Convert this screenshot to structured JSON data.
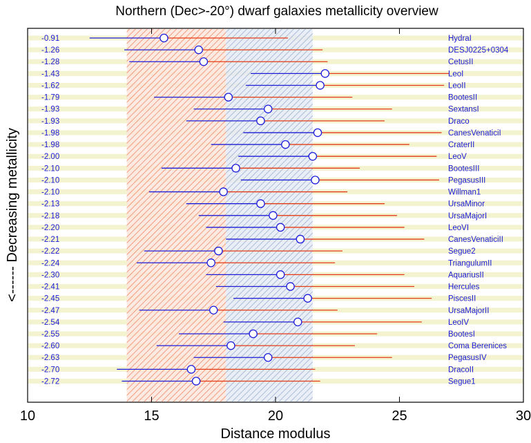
{
  "chart_data": {
    "type": "scatter",
    "title": "Northern (Dec>-20°) dwarf galaxies metallicity  overview",
    "xlabel": "Distance modulus",
    "ylabel": "<------ Decreasing metallicity",
    "xlim": [
      10,
      30
    ],
    "xticks": [
      10,
      15,
      20,
      25,
      30
    ],
    "grid": false,
    "bands": [
      {
        "x0": 14.0,
        "x1": 18.0,
        "color": "#f4a58c"
      },
      {
        "x0": 18.0,
        "x1": 21.5,
        "color": "#a8bad6"
      }
    ],
    "point_color": "#ffffff",
    "left_bar_color": "#1c1cdc",
    "right_bar_color": "#e53a1a",
    "label_color": "#1a1adc",
    "stripe_color": "#f3f3cf",
    "galaxies": [
      {
        "name": "HydraI",
        "feh": "-0.91",
        "x": 15.5,
        "lo": 12.5,
        "hi": 20.5
      },
      {
        "name": "DESJ0225+0304",
        "feh": "-1.26",
        "x": 16.9,
        "lo": 13.9,
        "hi": 21.9
      },
      {
        "name": "CetusII",
        "feh": "-1.28",
        "x": 17.1,
        "lo": 14.1,
        "hi": 22.1
      },
      {
        "name": "LeoI",
        "feh": "-1.43",
        "x": 22.0,
        "lo": 19.0,
        "hi": 27.0
      },
      {
        "name": "LeoII",
        "feh": "-1.62",
        "x": 21.8,
        "lo": 18.8,
        "hi": 26.8
      },
      {
        "name": "BootesII",
        "feh": "-1.79",
        "x": 18.1,
        "lo": 15.1,
        "hi": 23.1
      },
      {
        "name": "SextansI",
        "feh": "-1.93",
        "x": 19.7,
        "lo": 16.7,
        "hi": 24.7
      },
      {
        "name": "Draco",
        "feh": "-1.93",
        "x": 19.4,
        "lo": 16.4,
        "hi": 24.4
      },
      {
        "name": "CanesVenaticiI",
        "feh": "-1.98",
        "x": 21.7,
        "lo": 18.7,
        "hi": 26.7
      },
      {
        "name": "CraterII",
        "feh": "-1.98",
        "x": 20.4,
        "lo": 17.4,
        "hi": 25.4
      },
      {
        "name": "LeoV",
        "feh": "-2.00",
        "x": 21.5,
        "lo": 18.5,
        "hi": 26.5
      },
      {
        "name": "BootesIII",
        "feh": "-2.10",
        "x": 18.4,
        "lo": 15.4,
        "hi": 23.4
      },
      {
        "name": "PegasusIII",
        "feh": "-2.10",
        "x": 21.6,
        "lo": 18.6,
        "hi": 26.6
      },
      {
        "name": "Willman1",
        "feh": "-2.10",
        "x": 17.9,
        "lo": 14.9,
        "hi": 22.9
      },
      {
        "name": "UrsaMinor",
        "feh": "-2.13",
        "x": 19.4,
        "lo": 16.4,
        "hi": 24.4
      },
      {
        "name": "UrsaMajorI",
        "feh": "-2.18",
        "x": 19.9,
        "lo": 16.9,
        "hi": 24.9
      },
      {
        "name": "LeoVI",
        "feh": "-2.20",
        "x": 20.2,
        "lo": 17.2,
        "hi": 25.2
      },
      {
        "name": "CanesVenaticiII",
        "feh": "-2.21",
        "x": 21.0,
        "lo": 18.0,
        "hi": 26.0
      },
      {
        "name": "Segue2",
        "feh": "-2.22",
        "x": 17.7,
        "lo": 14.7,
        "hi": 22.7
      },
      {
        "name": "TriangulumII",
        "feh": "-2.24",
        "x": 17.4,
        "lo": 14.4,
        "hi": 22.4
      },
      {
        "name": "AquariusII",
        "feh": "-2.30",
        "x": 20.2,
        "lo": 17.2,
        "hi": 25.2
      },
      {
        "name": "Hercules",
        "feh": "-2.41",
        "x": 20.6,
        "lo": 17.6,
        "hi": 25.6
      },
      {
        "name": "PiscesII",
        "feh": "-2.45",
        "x": 21.3,
        "lo": 18.3,
        "hi": 26.3
      },
      {
        "name": "UrsaMajorII",
        "feh": "-2.47",
        "x": 17.5,
        "lo": 14.5,
        "hi": 22.5
      },
      {
        "name": "LeoIV",
        "feh": "-2.54",
        "x": 20.9,
        "lo": 17.9,
        "hi": 25.9
      },
      {
        "name": "BootesI",
        "feh": "-2.55",
        "x": 19.1,
        "lo": 16.1,
        "hi": 24.1
      },
      {
        "name": "Coma Berenices",
        "feh": "-2.60",
        "x": 18.2,
        "lo": 15.2,
        "hi": 23.2
      },
      {
        "name": "PegasusIV",
        "feh": "-2.63",
        "x": 19.7,
        "lo": 16.7,
        "hi": 24.7
      },
      {
        "name": "DracoII",
        "feh": "-2.70",
        "x": 16.6,
        "lo": 13.6,
        "hi": 21.6
      },
      {
        "name": "Segue1",
        "feh": "-2.72",
        "x": 16.8,
        "lo": 13.8,
        "hi": 21.8
      }
    ]
  }
}
